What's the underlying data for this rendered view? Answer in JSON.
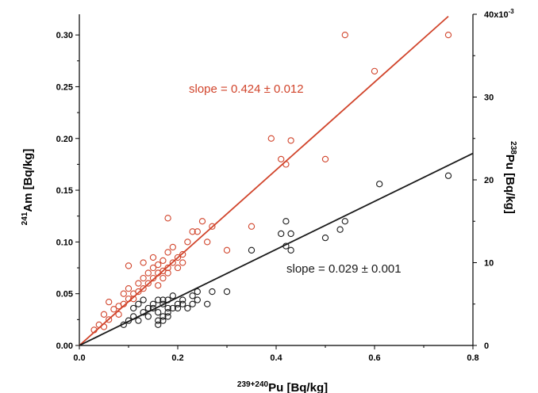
{
  "chart_data": {
    "type": "scatter",
    "x_axis": {
      "label_sup": "239+240",
      "label_main": "Pu [Bq/kg]",
      "range": [
        0.0,
        0.8
      ],
      "ticks": [
        0.0,
        0.2,
        0.4,
        0.6,
        0.8
      ],
      "tick_labels": [
        "0.0",
        "0.2",
        "0.4",
        "0.6",
        "0.8"
      ]
    },
    "y_axis_left": {
      "label_sup": "241",
      "label_main": "Am [Bq/kg]",
      "range": [
        0.0,
        0.32
      ],
      "ticks": [
        0.0,
        0.05,
        0.1,
        0.15,
        0.2,
        0.25,
        0.3
      ],
      "tick_labels": [
        "0.00",
        "0.05",
        "0.10",
        "0.15",
        "0.20",
        "0.25",
        "0.30"
      ]
    },
    "y_axis_right": {
      "label_sup": "238",
      "label_main": "Pu [Bq/kg]",
      "range": [
        0,
        0.04
      ],
      "ticks": [
        0,
        0.01,
        0.02,
        0.03,
        0.04
      ],
      "tick_labels": [
        "0",
        "10",
        "20",
        "30",
        "40x10"
      ],
      "top_exponent": "-3"
    },
    "series": [
      {
        "axis": "left",
        "color": "#d1442b",
        "fit": {
          "slope": 0.424,
          "x_range": [
            0.0,
            0.75
          ]
        },
        "annotation": "slope = 0.424 ± 0.012",
        "points": [
          [
            0.03,
            0.015
          ],
          [
            0.04,
            0.02
          ],
          [
            0.05,
            0.018
          ],
          [
            0.05,
            0.03
          ],
          [
            0.06,
            0.025
          ],
          [
            0.06,
            0.042
          ],
          [
            0.07,
            0.035
          ],
          [
            0.08,
            0.03
          ],
          [
            0.08,
            0.038
          ],
          [
            0.09,
            0.04
          ],
          [
            0.09,
            0.05
          ],
          [
            0.1,
            0.045
          ],
          [
            0.1,
            0.055
          ],
          [
            0.1,
            0.077
          ],
          [
            0.11,
            0.05
          ],
          [
            0.11,
            0.045
          ],
          [
            0.12,
            0.06
          ],
          [
            0.12,
            0.052
          ],
          [
            0.13,
            0.055
          ],
          [
            0.13,
            0.065
          ],
          [
            0.13,
            0.08
          ],
          [
            0.14,
            0.06
          ],
          [
            0.14,
            0.07
          ],
          [
            0.15,
            0.065
          ],
          [
            0.15,
            0.075
          ],
          [
            0.15,
            0.085
          ],
          [
            0.16,
            0.07
          ],
          [
            0.16,
            0.078
          ],
          [
            0.16,
            0.058
          ],
          [
            0.17,
            0.072
          ],
          [
            0.17,
            0.065
          ],
          [
            0.17,
            0.082
          ],
          [
            0.18,
            0.075
          ],
          [
            0.18,
            0.09
          ],
          [
            0.18,
            0.07
          ],
          [
            0.18,
            0.123
          ],
          [
            0.19,
            0.08
          ],
          [
            0.19,
            0.095
          ],
          [
            0.2,
            0.075
          ],
          [
            0.2,
            0.085
          ],
          [
            0.21,
            0.08
          ],
          [
            0.21,
            0.088
          ],
          [
            0.22,
            0.1
          ],
          [
            0.23,
            0.11
          ],
          [
            0.24,
            0.11
          ],
          [
            0.25,
            0.12
          ],
          [
            0.26,
            0.1
          ],
          [
            0.27,
            0.115
          ],
          [
            0.3,
            0.092
          ],
          [
            0.35,
            0.115
          ],
          [
            0.39,
            0.2
          ],
          [
            0.41,
            0.18
          ],
          [
            0.42,
            0.175
          ],
          [
            0.43,
            0.198
          ],
          [
            0.5,
            0.18
          ],
          [
            0.54,
            0.3
          ],
          [
            0.6,
            0.265
          ],
          [
            0.75,
            0.3
          ]
        ]
      },
      {
        "axis": "right",
        "color": "#1a1a1a",
        "fit": {
          "slope": 0.029,
          "x_range": [
            0.0,
            0.8
          ]
        },
        "annotation": "slope = 0.029 ± 0.001",
        "points": [
          [
            0.09,
            0.0025
          ],
          [
            0.1,
            0.003
          ],
          [
            0.11,
            0.0035
          ],
          [
            0.11,
            0.0045
          ],
          [
            0.12,
            0.003
          ],
          [
            0.12,
            0.005
          ],
          [
            0.13,
            0.004
          ],
          [
            0.13,
            0.0055
          ],
          [
            0.14,
            0.0045
          ],
          [
            0.14,
            0.0035
          ],
          [
            0.15,
            0.0045
          ],
          [
            0.15,
            0.005
          ],
          [
            0.16,
            0.0055
          ],
          [
            0.16,
            0.004
          ],
          [
            0.16,
            0.003
          ],
          [
            0.16,
            0.0025
          ],
          [
            0.17,
            0.005
          ],
          [
            0.17,
            0.0035
          ],
          [
            0.17,
            0.0055
          ],
          [
            0.17,
            0.003
          ],
          [
            0.18,
            0.0055
          ],
          [
            0.18,
            0.004
          ],
          [
            0.18,
            0.0045
          ],
          [
            0.18,
            0.0035
          ],
          [
            0.19,
            0.006
          ],
          [
            0.19,
            0.0045
          ],
          [
            0.2,
            0.005
          ],
          [
            0.2,
            0.0045
          ],
          [
            0.21,
            0.0055
          ],
          [
            0.21,
            0.005
          ],
          [
            0.22,
            0.0045
          ],
          [
            0.23,
            0.005
          ],
          [
            0.23,
            0.006
          ],
          [
            0.24,
            0.0065
          ],
          [
            0.24,
            0.0055
          ],
          [
            0.26,
            0.005
          ],
          [
            0.27,
            0.0065
          ],
          [
            0.3,
            0.0065
          ],
          [
            0.35,
            0.0115
          ],
          [
            0.41,
            0.0135
          ],
          [
            0.42,
            0.012
          ],
          [
            0.42,
            0.015
          ],
          [
            0.43,
            0.0135
          ],
          [
            0.43,
            0.0115
          ],
          [
            0.5,
            0.013
          ],
          [
            0.53,
            0.014
          ],
          [
            0.54,
            0.015
          ],
          [
            0.61,
            0.0195
          ],
          [
            0.75,
            0.0205
          ]
        ]
      }
    ],
    "grid": false,
    "legend": "none"
  }
}
